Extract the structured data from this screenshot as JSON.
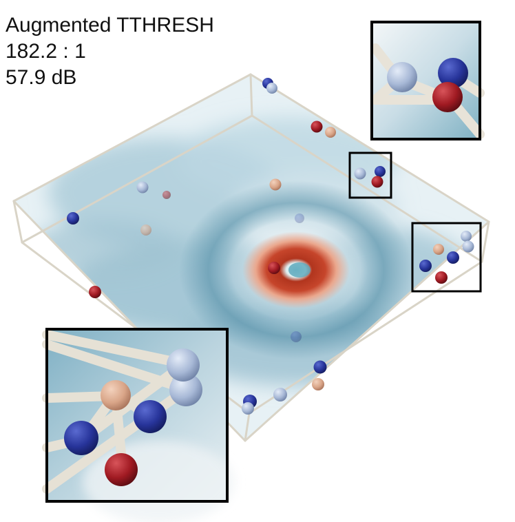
{
  "caption": {
    "method": "Augmented TTHRESH",
    "ratio": "182.2 : 1",
    "psnr": "57.9 dB"
  },
  "colors": {
    "background": "#ffffff",
    "box_edge": "#d9d4c7",
    "field_light": "#dbe9f0",
    "field_mid": "#8fbacb",
    "field_dark": "#4d8aa3",
    "vortex_hot": "#b1351e",
    "vortex_warm": "#e0876b",
    "critical_point_navy": "#27349a",
    "critical_point_lightblue": "#a7b8d6",
    "critical_point_darkred": "#a01a22",
    "critical_point_salmon": "#d9a588",
    "inset_frame": "#000000"
  },
  "insets": [
    {
      "name": "zoom-top-right"
    },
    {
      "name": "zoom-bottom-left"
    }
  ]
}
